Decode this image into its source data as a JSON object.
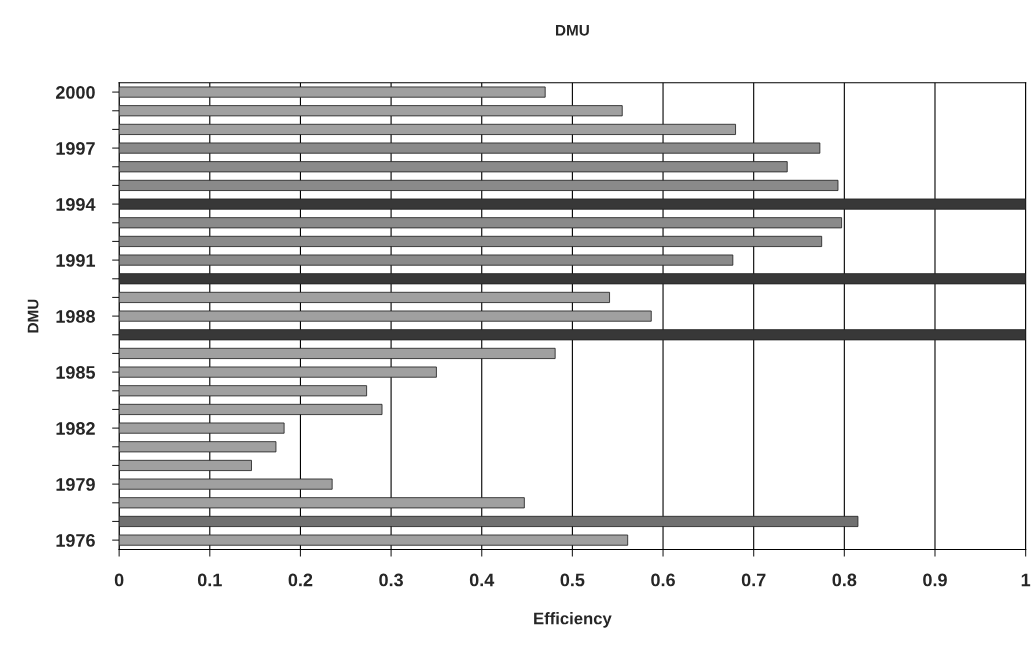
{
  "chart_data": {
    "type": "bar",
    "orientation": "horizontal",
    "title": "DMU",
    "xlabel": "Efficiency",
    "ylabel": "DMU",
    "categories": [
      "2000",
      null,
      null,
      "1997",
      null,
      null,
      "1994",
      null,
      null,
      "1991",
      null,
      null,
      "1988",
      null,
      null,
      "1985",
      null,
      null,
      "1982",
      null,
      null,
      "1979",
      null,
      null,
      "1976"
    ],
    "values": [
      0.47,
      0.555,
      0.68,
      0.773,
      0.737,
      0.793,
      1.0,
      0.797,
      0.775,
      0.677,
      1.0,
      0.541,
      0.587,
      1.0,
      0.481,
      0.35,
      0.273,
      0.29,
      0.182,
      0.173,
      0.146,
      0.235,
      0.447,
      0.815,
      0.561
    ],
    "colors": [
      "#a0a0a0",
      "#a0a0a0",
      "#a0a0a0",
      "#8a8a8a",
      "#8a8a8a",
      "#8a8a8a",
      "#383838",
      "#8a8a8a",
      "#8a8a8a",
      "#8a8a8a",
      "#383838",
      "#a0a0a0",
      "#a0a0a0",
      "#383838",
      "#a0a0a0",
      "#a0a0a0",
      "#a0a0a0",
      "#a0a0a0",
      "#a0a0a0",
      "#a0a0a0",
      "#a0a0a0",
      "#a0a0a0",
      "#a0a0a0",
      "#707070",
      "#a0a0a0"
    ],
    "xlim": [
      0,
      1
    ],
    "xticks": [
      0,
      0.1,
      0.2,
      0.3,
      0.4,
      0.5,
      0.6,
      0.7,
      0.8,
      0.9,
      1
    ],
    "grid": "x",
    "legend": false
  }
}
